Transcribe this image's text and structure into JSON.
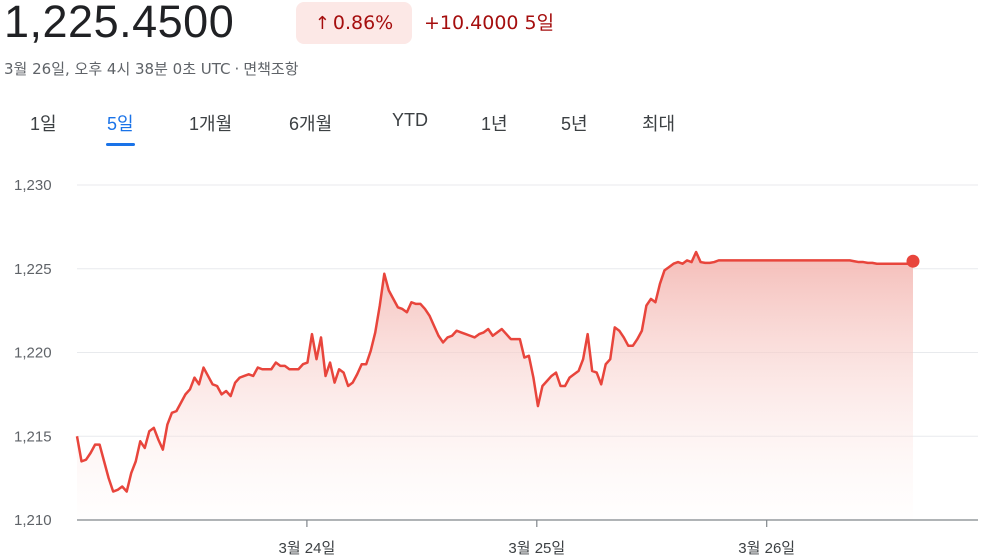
{
  "header": {
    "price": "1,225.4500",
    "change_percent": "0.86%",
    "change_arrow": "↑",
    "change_value": "+10.4000",
    "change_period": "5일",
    "timestamp": "3월 26일, 오후 4시 38분 0초 UTC",
    "separator": "·",
    "disclaimer": "면책조항"
  },
  "tabs": [
    {
      "label": "1일",
      "active": false
    },
    {
      "label": "5일",
      "active": true
    },
    {
      "label": "1개월",
      "active": false
    },
    {
      "label": "6개월",
      "active": false
    },
    {
      "label": "YTD",
      "active": false
    },
    {
      "label": "1년",
      "active": false
    },
    {
      "label": "5년",
      "active": false
    },
    {
      "label": "최대",
      "active": false
    }
  ],
  "colors": {
    "line": "#e8453c",
    "fill_top": "#f4b9b4",
    "negative_text": "#a50e0e",
    "active_tab": "#1a73e8"
  },
  "chart_data": {
    "type": "area",
    "ylim": [
      1210,
      1230
    ],
    "y_ticks": [
      1230,
      1225,
      1220,
      1215,
      1210
    ],
    "y_tick_labels": [
      "1,230",
      "1,225",
      "1,220",
      "1,215",
      "1,210"
    ],
    "x_tick_labels": [
      "3월 24일",
      "3월 25일",
      "3월 26일"
    ],
    "x_tick_index": [
      0.275,
      0.55,
      0.825
    ],
    "values": [
      1215.0,
      1213.5,
      1213.6,
      1214.0,
      1214.5,
      1214.5,
      1213.5,
      1212.5,
      1211.7,
      1211.8,
      1212.0,
      1211.7,
      1212.8,
      1213.5,
      1214.7,
      1214.3,
      1215.3,
      1215.5,
      1214.8,
      1214.2,
      1215.7,
      1216.4,
      1216.5,
      1217.0,
      1217.5,
      1217.8,
      1218.5,
      1218.1,
      1219.1,
      1218.6,
      1218.1,
      1218.0,
      1217.5,
      1217.7,
      1217.4,
      1218.2,
      1218.5,
      1218.6,
      1218.7,
      1218.6,
      1219.1,
      1219.0,
      1219.0,
      1219.0,
      1219.4,
      1219.2,
      1219.2,
      1219.0,
      1219.0,
      1219.0,
      1219.3,
      1219.4,
      1221.1,
      1219.6,
      1220.9,
      1218.6,
      1219.4,
      1218.2,
      1219.0,
      1218.8,
      1218.0,
      1218.2,
      1218.7,
      1219.3,
      1219.3,
      1220.1,
      1221.2,
      1222.8,
      1224.7,
      1223.7,
      1223.2,
      1222.7,
      1222.6,
      1222.4,
      1223.0,
      1222.9,
      1222.9,
      1222.6,
      1222.2,
      1221.6,
      1221.0,
      1220.6,
      1220.9,
      1221.0,
      1221.3,
      1221.2,
      1221.1,
      1221.0,
      1220.9,
      1221.1,
      1221.2,
      1221.4,
      1221.0,
      1221.2,
      1221.4,
      1221.1,
      1220.8,
      1220.8,
      1220.8,
      1219.7,
      1219.8,
      1218.5,
      1216.8,
      1218.0,
      1218.3,
      1218.6,
      1218.8,
      1218.0,
      1218.0,
      1218.5,
      1218.7,
      1218.9,
      1219.6,
      1221.1,
      1218.9,
      1218.8,
      1218.1,
      1219.3,
      1219.6,
      1221.5,
      1221.3,
      1220.9,
      1220.4,
      1220.4,
      1220.8,
      1221.3,
      1222.8,
      1223.2,
      1223.0,
      1224.1,
      1224.9,
      1225.1,
      1225.3,
      1225.4,
      1225.3,
      1225.5,
      1225.4,
      1226.0,
      1225.4,
      1225.35,
      1225.35,
      1225.4,
      1225.5,
      1225.5,
      1225.5,
      1225.5,
      1225.5,
      1225.5,
      1225.5,
      1225.5,
      1225.5,
      1225.5,
      1225.5,
      1225.5,
      1225.5,
      1225.5,
      1225.5,
      1225.5,
      1225.5,
      1225.5,
      1225.5,
      1225.5,
      1225.5,
      1225.5,
      1225.5,
      1225.5,
      1225.5,
      1225.5,
      1225.5,
      1225.5,
      1225.5,
      1225.5,
      1225.45,
      1225.4,
      1225.4,
      1225.35,
      1225.35,
      1225.3,
      1225.3,
      1225.3,
      1225.3,
      1225.3,
      1225.3,
      1225.3,
      1225.3,
      1225.45
    ]
  }
}
